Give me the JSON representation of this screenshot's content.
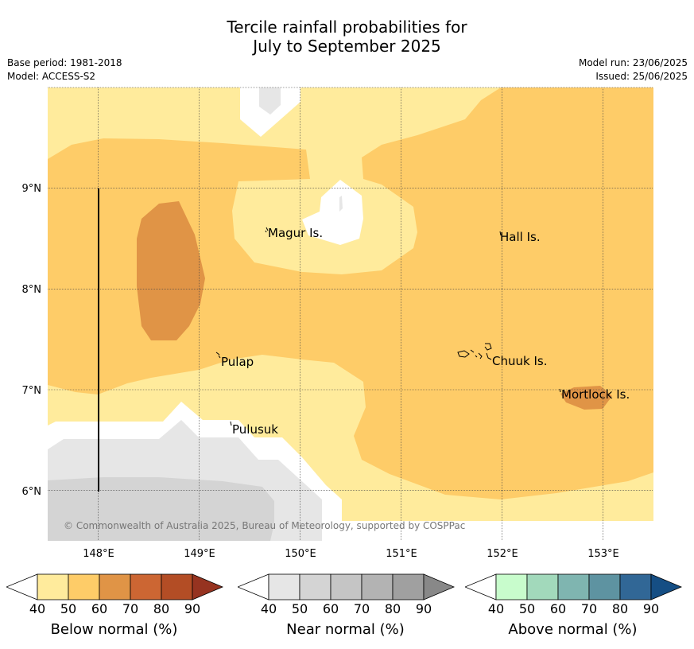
{
  "title": {
    "line1": "Tercile rainfall probabilities for",
    "line2": "July to September 2025"
  },
  "meta": {
    "base_period": "Base period: 1981-2018",
    "model": "Model: ACCESS-S2",
    "model_run": "Model run: 23/06/2025",
    "issued": "Issued: 25/06/2025"
  },
  "map": {
    "lon_range": [
      147.5,
      153.5
    ],
    "lat_range": [
      5.5,
      10.0
    ],
    "lon_ticks": [
      "148°E",
      "149°E",
      "150°E",
      "151°E",
      "152°E",
      "153°E"
    ],
    "lat_ticks": [
      "9°N",
      "8°N",
      "7°N",
      "6°N"
    ],
    "copyright": "© Commonwealth of Australia 2025, Bureau of Meteorology, supported by COSPPac",
    "places": [
      {
        "name": "Magur Is."
      },
      {
        "name": "Hall Is."
      },
      {
        "name": "Pulap"
      },
      {
        "name": "Chuuk Is."
      },
      {
        "name": "Mortlock Is."
      },
      {
        "name": "Pulusuk"
      }
    ]
  },
  "colorbars": [
    {
      "label": "Below normal (%)",
      "ticks": [
        "40",
        "50",
        "60",
        "70",
        "80",
        "90"
      ],
      "colors": [
        "#ffffff",
        "#ffeb9c",
        "#fecc68",
        "#e09446",
        "#cc6633",
        "#b34d25",
        "#963320"
      ]
    },
    {
      "label": "Near normal (%)",
      "ticks": [
        "40",
        "50",
        "60",
        "70",
        "80",
        "90"
      ],
      "colors": [
        "#ffffff",
        "#e6e6e6",
        "#d4d4d4",
        "#c5c5c5",
        "#b3b3b3",
        "#a0a0a0",
        "#888888"
      ]
    },
    {
      "label": "Above normal (%)",
      "ticks": [
        "40",
        "50",
        "60",
        "70",
        "80",
        "90"
      ],
      "colors": [
        "#ffffff",
        "#c8fccc",
        "#a2d9bb",
        "#7fb5b0",
        "#5e93a1",
        "#316796",
        "#154e84"
      ]
    }
  ]
}
